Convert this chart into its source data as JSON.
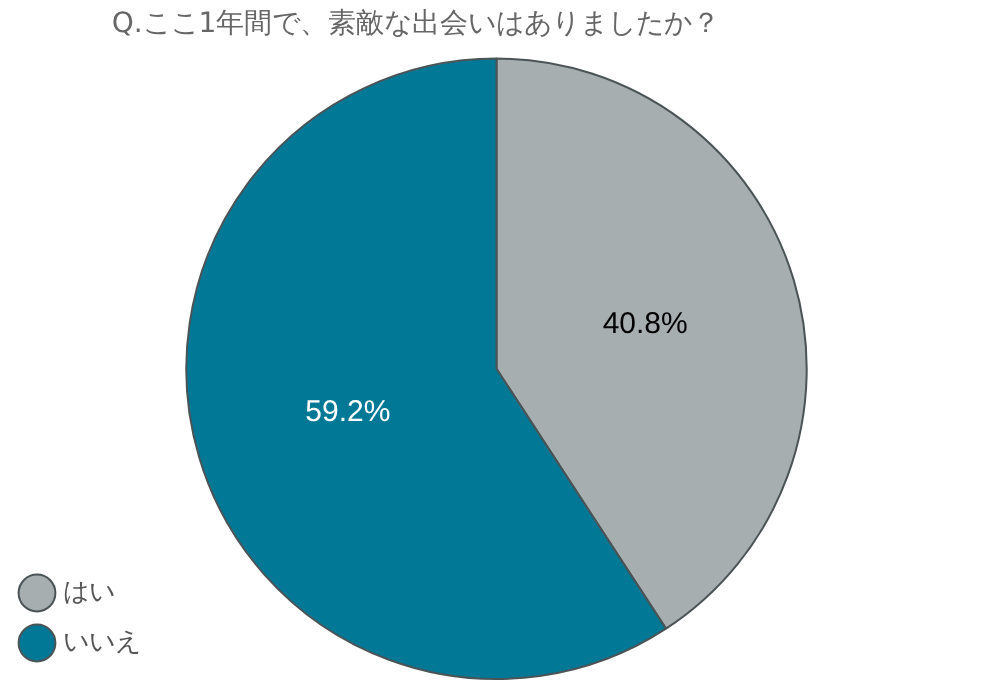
{
  "chart_data": {
    "type": "pie",
    "title": "Q.ここ1年間で、素敵な出会いはありましたか？",
    "categories": [
      "はい",
      "いいえ"
    ],
    "values": [
      40.8,
      59.2
    ],
    "colors": [
      "#a7aeaf",
      "#007896"
    ],
    "value_labels": [
      "40.8%",
      "59.2%"
    ],
    "legend": "bottom left"
  }
}
